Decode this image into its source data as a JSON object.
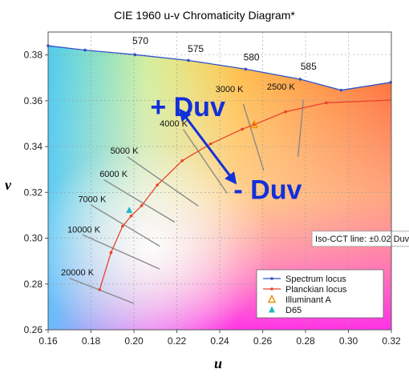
{
  "chart_data": {
    "type": "line",
    "title": "CIE 1960 u-v Chromaticity Diagram*",
    "xlabel": "u",
    "ylabel": "v",
    "xlim": [
      0.16,
      0.32
    ],
    "ylim": [
      0.26,
      0.39
    ],
    "x_ticks": [
      "0.16",
      "0.18",
      "0.20",
      "0.22",
      "0.24",
      "0.26",
      "0.28",
      "0.30",
      "0.32"
    ],
    "y_ticks": [
      "0.26",
      "0.28",
      "0.30",
      "0.32",
      "0.34",
      "0.36",
      "0.38"
    ],
    "grid": true,
    "series": [
      {
        "name": "Spectrum locus",
        "color": "#2f52c8",
        "marker": "dot",
        "points": [
          [
            0.16,
            0.384
          ],
          [
            0.1772,
            0.3821
          ],
          [
            0.2005,
            0.3801
          ],
          [
            0.2254,
            0.3776
          ],
          [
            0.2521,
            0.3738
          ],
          [
            0.2775,
            0.3694
          ],
          [
            0.2966,
            0.3646
          ],
          [
            0.3197,
            0.368
          ]
        ],
        "labels": [
          {
            "text": "570",
            "x": 0.203,
            "y": 0.3848
          },
          {
            "text": "575",
            "x": 0.2288,
            "y": 0.3812
          },
          {
            "text": "580",
            "x": 0.2548,
            "y": 0.3776
          },
          {
            "text": "585",
            "x": 0.2814,
            "y": 0.3736
          }
        ]
      },
      {
        "name": "Planckian locus",
        "color": "#e8432a",
        "marker": "dot",
        "points": [
          [
            0.184,
            0.2775
          ],
          [
            0.1893,
            0.2937
          ],
          [
            0.1947,
            0.3052
          ],
          [
            0.1987,
            0.3097
          ],
          [
            0.2036,
            0.3142
          ],
          [
            0.2109,
            0.3232
          ],
          [
            0.2225,
            0.3338
          ],
          [
            0.2358,
            0.3412
          ],
          [
            0.2505,
            0.3476
          ],
          [
            0.2561,
            0.3496
          ],
          [
            0.2707,
            0.3552
          ],
          [
            0.2897,
            0.3591
          ],
          [
            0.3203,
            0.3603
          ]
        ]
      },
      {
        "name": "Illuminant A",
        "color": "#f08a00",
        "marker": "triangle-open",
        "points": [
          [
            0.256,
            0.3495
          ]
        ]
      },
      {
        "name": "D65",
        "color": "#22b8c8",
        "marker": "triangle",
        "points": [
          [
            0.1978,
            0.3122
          ]
        ]
      }
    ],
    "iso_cct_lines": [
      {
        "label": "20000 K",
        "from": [
          0.17,
          0.2825
        ],
        "to": [
          0.2,
          0.2715
        ],
        "label_at": [
          0.166,
          0.2838
        ]
      },
      {
        "label": "10000 K",
        "from": [
          0.176,
          0.3015
        ],
        "to": [
          0.212,
          0.2865
        ],
        "label_at": [
          0.169,
          0.3025
        ]
      },
      {
        "label": "7000 K",
        "from": [
          0.18,
          0.3145
        ],
        "to": [
          0.212,
          0.2965
        ],
        "label_at": [
          0.174,
          0.3157
        ]
      },
      {
        "label": "6000 K",
        "from": [
          0.186,
          0.3255
        ],
        "to": [
          0.219,
          0.307
        ],
        "label_at": [
          0.184,
          0.3268
        ]
      },
      {
        "label": "5000 K",
        "from": [
          0.197,
          0.3355
        ],
        "to": [
          0.23,
          0.314
        ],
        "label_at": [
          0.189,
          0.3368
        ]
      },
      {
        "label": "4000 K",
        "from": [
          0.223,
          0.3475
        ],
        "to": [
          0.2435,
          0.3195
        ],
        "label_at": [
          0.212,
          0.3488
        ]
      },
      {
        "label": "3000 K",
        "from": [
          0.251,
          0.3585
        ],
        "to": [
          0.2605,
          0.3295
        ],
        "label_at": [
          0.238,
          0.3638
        ]
      },
      {
        "label": "2500 K",
        "from": [
          0.279,
          0.3605
        ],
        "to": [
          0.2765,
          0.3355
        ],
        "label_at": [
          0.262,
          0.3648
        ]
      }
    ],
    "annotations": [
      {
        "text": "+ Duv",
        "x": 0.2076,
        "y": 0.3533
      },
      {
        "text": "- Duv",
        "x": 0.2465,
        "y": 0.3172
      },
      {
        "text": "Iso-CCT line: ±0.02 Duv",
        "x": 0.2845,
        "y": 0.2985
      }
    ],
    "duv_arrow": {
      "from": [
        0.2228,
        0.3545
      ],
      "to": [
        0.2462,
        0.3255
      ]
    },
    "legend": {
      "position": "bottom-right",
      "items": [
        "Spectrum locus",
        "Planckian locus",
        "Illuminant A",
        "D65"
      ]
    }
  }
}
